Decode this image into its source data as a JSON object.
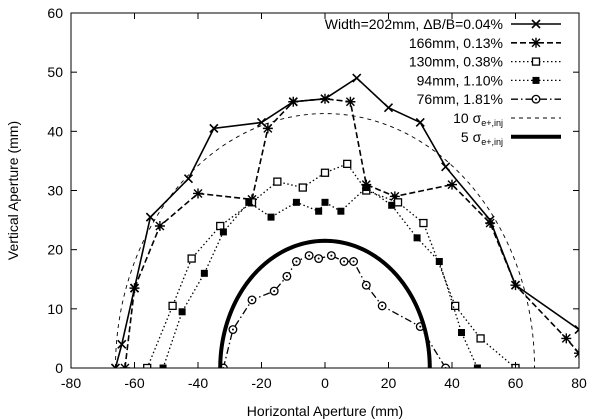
{
  "chart_data": {
    "type": "line",
    "title": "",
    "xlabel": "Horizontal Aperture (mm)",
    "ylabel": "Vertical Aperture (mm)",
    "xlim": [
      -80,
      80
    ],
    "ylim": [
      0,
      60
    ],
    "xticks": [
      -80,
      -60,
      -40,
      -20,
      0,
      20,
      40,
      60,
      80
    ],
    "yticks": [
      0,
      10,
      20,
      30,
      40,
      50,
      60
    ],
    "grid": false,
    "legend_position": "top-right",
    "series": [
      {
        "name": "Width=202mm, ΔB/B=0.04%",
        "style": "solid",
        "marker": "x",
        "width": 1.6,
        "points": [
          [
            -66,
            0
          ],
          [
            -64,
            4
          ],
          [
            -60,
            13.5
          ],
          [
            -55,
            25.5
          ],
          [
            -43,
            32
          ],
          [
            -35,
            40.5
          ],
          [
            -20,
            41.5
          ],
          [
            -10,
            45
          ],
          [
            0,
            45.5
          ],
          [
            10,
            49
          ],
          [
            20,
            44
          ],
          [
            30,
            41.5
          ],
          [
            38,
            34
          ],
          [
            52,
            25
          ],
          [
            60,
            14
          ],
          [
            80,
            6.5
          ]
        ]
      },
      {
        "name": "166mm, 0.13%",
        "style": "dash",
        "marker": "star",
        "width": 1.6,
        "points": [
          [
            -63,
            0
          ],
          [
            -60,
            13.5
          ],
          [
            -52,
            24
          ],
          [
            -40,
            29.5
          ],
          [
            -23,
            28.5
          ],
          [
            -18,
            40.5
          ],
          [
            -10,
            45
          ],
          [
            0,
            45.5
          ],
          [
            8,
            45
          ],
          [
            13,
            31
          ],
          [
            22,
            29
          ],
          [
            40,
            31
          ],
          [
            52,
            24.5
          ],
          [
            60,
            14
          ],
          [
            76,
            5
          ],
          [
            80,
            2.5
          ]
        ]
      },
      {
        "name": "130mm, 0.38%",
        "style": "dot",
        "marker": "square-open",
        "width": 1.3,
        "points": [
          [
            -56,
            0
          ],
          [
            -48,
            10.5
          ],
          [
            -42,
            18.5
          ],
          [
            -33,
            24
          ],
          [
            -23,
            28
          ],
          [
            -15,
            31.5
          ],
          [
            -7,
            30.5
          ],
          [
            0,
            33
          ],
          [
            7,
            34.5
          ],
          [
            13,
            30
          ],
          [
            23,
            28
          ],
          [
            31,
            24.5
          ],
          [
            41,
            10.5
          ],
          [
            49,
            5
          ],
          [
            60,
            0
          ]
        ]
      },
      {
        "name": "94mm, 1.10%",
        "style": "dot",
        "marker": "square-filled",
        "width": 1.3,
        "points": [
          [
            -51,
            0
          ],
          [
            -45,
            9.5
          ],
          [
            -38,
            16
          ],
          [
            -32,
            23
          ],
          [
            -24,
            28
          ],
          [
            -17,
            25.5
          ],
          [
            -9,
            28
          ],
          [
            -2,
            26.5
          ],
          [
            0,
            28
          ],
          [
            5,
            26.5
          ],
          [
            13,
            30.5
          ],
          [
            21,
            27.5
          ],
          [
            29,
            22
          ],
          [
            36,
            18
          ],
          [
            43,
            6
          ],
          [
            48,
            0
          ]
        ]
      },
      {
        "name": "76mm, 1.81%",
        "style": "dashdot",
        "marker": "circle-dot",
        "width": 1.3,
        "points": [
          [
            -32,
            0
          ],
          [
            -29,
            6.5
          ],
          [
            -23,
            11.5
          ],
          [
            -16,
            13
          ],
          [
            -12,
            15.5
          ],
          [
            -9,
            18
          ],
          [
            -5,
            19
          ],
          [
            -2,
            18.5
          ],
          [
            2,
            19
          ],
          [
            6,
            18
          ],
          [
            9,
            18
          ],
          [
            13,
            14
          ],
          [
            18,
            10.5
          ],
          [
            30,
            7
          ],
          [
            38,
            0
          ]
        ]
      },
      {
        "name": "10 σe+,inj",
        "style": "dash-thin",
        "marker": "none",
        "width": 0.9,
        "curve": "ellipse",
        "ellipse": {
          "cx": 0,
          "a": 66,
          "b": 43
        }
      },
      {
        "name": "5 σe+,inj",
        "style": "solid-thick",
        "marker": "none",
        "width": 4,
        "curve": "ellipse",
        "ellipse": {
          "cx": 0,
          "a": 33,
          "b": 21.5
        }
      }
    ]
  },
  "legend": {
    "items": [
      {
        "main": "Width=202mm, ΔB/B=0.04%",
        "sub": ""
      },
      {
        "main": "166mm, 0.13%",
        "sub": ""
      },
      {
        "main": "130mm, 0.38%",
        "sub": ""
      },
      {
        "main": "94mm, 1.10%",
        "sub": ""
      },
      {
        "main": "76mm, 1.81%",
        "sub": ""
      },
      {
        "main": "10 σ",
        "sub": "e+,inj"
      },
      {
        "main": "5 σ",
        "sub": "e+,inj"
      }
    ]
  }
}
